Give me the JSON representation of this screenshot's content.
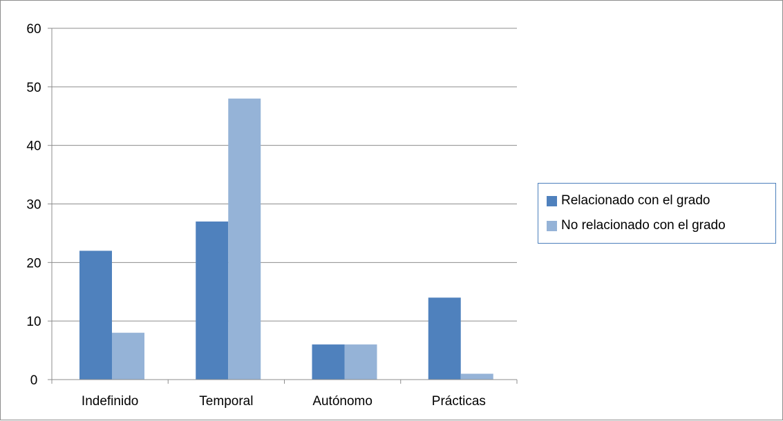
{
  "chart_data": {
    "type": "bar",
    "title": "",
    "xlabel": "",
    "ylabel": "",
    "categories": [
      "Indefinido",
      "Temporal",
      "Autónomo",
      "Prácticas"
    ],
    "series": [
      {
        "name": "Relacionado con el grado",
        "values": [
          22,
          27,
          6,
          14
        ],
        "color": "#4f81bd"
      },
      {
        "name": "No relacionado con el grado",
        "values": [
          8,
          48,
          6,
          1
        ],
        "color": "#95b3d7"
      }
    ],
    "ylim": [
      0,
      60
    ],
    "yticks": [
      0,
      10,
      20,
      30,
      40,
      50,
      60
    ],
    "grid": true,
    "legend_position": "right"
  }
}
